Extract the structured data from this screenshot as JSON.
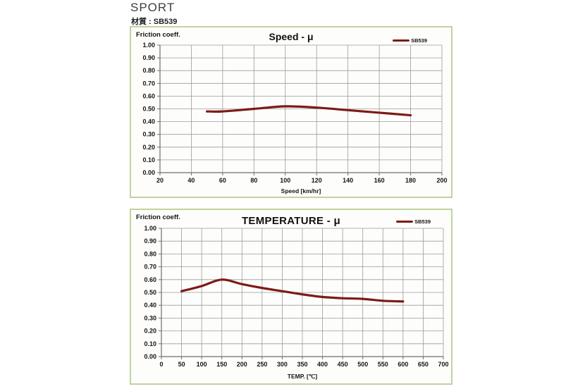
{
  "page": {
    "title": "SPORT",
    "material_label": "材質 : SB539",
    "box_border_color": "#c0d39d"
  },
  "chart_data": [
    {
      "type": "line",
      "title": "Speed - μ",
      "ylabel": "Friction coeff.",
      "xlabel": "Speed [km/hr]",
      "color": "#7d1a17",
      "grid": true,
      "legend_position": "top-right",
      "xlim": [
        20,
        200
      ],
      "xtick_step": 20,
      "ylim": [
        0.0,
        1.0
      ],
      "ytick_step": 0.1,
      "y_decimals": 2,
      "series": [
        {
          "name": "SB539",
          "points": [
            [
              50,
              0.48
            ],
            [
              60,
              0.48
            ],
            [
              80,
              0.5
            ],
            [
              100,
              0.52
            ],
            [
              120,
              0.51
            ],
            [
              140,
              0.49
            ],
            [
              160,
              0.47
            ],
            [
              180,
              0.45
            ]
          ]
        }
      ]
    },
    {
      "type": "line",
      "title": "TEMPERATURE - μ",
      "ylabel": "Friction coeff.",
      "xlabel": "TEMP. [℃]",
      "color": "#7d1a17",
      "grid": true,
      "legend_position": "top-right",
      "xlim": [
        0,
        700
      ],
      "xtick_step": 50,
      "ylim": [
        0.0,
        1.0
      ],
      "ytick_step": 0.1,
      "y_decimals": 2,
      "series": [
        {
          "name": "SB539",
          "points": [
            [
              50,
              0.51
            ],
            [
              100,
              0.55
            ],
            [
              150,
              0.6
            ],
            [
              200,
              0.565
            ],
            [
              250,
              0.535
            ],
            [
              300,
              0.51
            ],
            [
              350,
              0.485
            ],
            [
              400,
              0.465
            ],
            [
              450,
              0.455
            ],
            [
              500,
              0.45
            ],
            [
              550,
              0.435
            ],
            [
              600,
              0.43
            ]
          ]
        }
      ]
    }
  ]
}
